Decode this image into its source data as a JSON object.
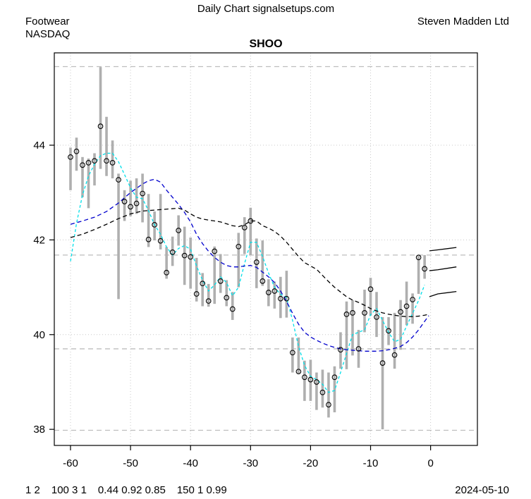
{
  "header": {
    "source_line": "Daily Chart signalsetups.com",
    "sector": "Footwear",
    "exchange": "NASDAQ",
    "company": "Steven Madden Ltd",
    "symbol": "SHOO"
  },
  "footer": {
    "stats_groups": [
      "1 2",
      "100 3 1",
      "0.44 0.92 0.85",
      "150 1 0.99"
    ],
    "date": "2024-05-10"
  },
  "chart_data": {
    "type": "ohlc-bar-with-close-markers",
    "title": "SHOO",
    "xlabel": "",
    "ylabel": "",
    "x_ticks": [
      -60,
      -50,
      -40,
      -30,
      -20,
      -10,
      0
    ],
    "y_ticks": [
      38,
      40,
      42,
      44
    ],
    "xlim": [
      -62.7,
      7.8
    ],
    "ylim": [
      37.66,
      45.95
    ],
    "h_gridlines": [
      44,
      42,
      40
    ],
    "grid": "dotted",
    "legend": "none",
    "reference_levels": [
      45.66,
      41.68,
      39.7,
      37.98
    ],
    "days": [
      -60,
      -59,
      -58,
      -57,
      -56,
      -55,
      -54,
      -53,
      -52,
      -51,
      -50,
      -49,
      -48,
      -47,
      -46,
      -45,
      -44,
      -43,
      -42,
      -41,
      -40,
      -39,
      -38,
      -37,
      -36,
      -35,
      -34,
      -33,
      -32,
      -31,
      -30,
      -29,
      -28,
      -27,
      -26,
      -25,
      -24,
      -23,
      -22,
      -21,
      -20,
      -19,
      -18,
      -17,
      -16,
      -15,
      -14,
      -13,
      -12,
      -11,
      -10,
      -9,
      -8,
      -7,
      -6,
      -5,
      -4,
      -3,
      -2,
      -1
    ],
    "high": [
      43.95,
      44.16,
      43.75,
      43.72,
      43.83,
      45.65,
      44.6,
      44.1,
      43.4,
      43.05,
      43.25,
      43.3,
      43.4,
      42.97,
      42.6,
      42.97,
      41.85,
      42.07,
      42.52,
      42.28,
      42.05,
      41.62,
      41.3,
      41.07,
      41.86,
      41.7,
      41.15,
      40.9,
      42.15,
      42.48,
      42.68,
      42.03,
      41.99,
      41.17,
      41.12,
      41.22,
      41.35,
      39.94,
      39.94,
      39.45,
      39.47,
      39.2,
      39.26,
      39.2,
      39.33,
      40.05,
      40.7,
      40.73,
      40.1,
      40.95,
      41.2,
      40.9,
      40.37,
      40.37,
      40.46,
      40.73,
      41.12,
      40.87,
      41.66,
      41.68
    ],
    "low": [
      43.05,
      43.46,
      42.9,
      42.67,
      43.15,
      43.5,
      43.35,
      43.3,
      40.75,
      42.4,
      42.5,
      42.55,
      42.37,
      41.85,
      41.99,
      41.8,
      41.18,
      41.45,
      41.88,
      41.05,
      40.97,
      40.7,
      40.6,
      40.59,
      40.65,
      40.88,
      40.6,
      40.31,
      41.0,
      41.7,
      41.68,
      40.98,
      41.03,
      40.6,
      40.55,
      40.35,
      40.36,
      39.2,
      39.18,
      38.6,
      38.6,
      38.41,
      38.46,
      38.25,
      38.36,
      39.28,
      39.27,
      39.56,
      39.3,
      40.05,
      40.4,
      39.95,
      38.0,
      39.78,
      39.28,
      39.68,
      40.2,
      40.23,
      40.86,
      41.18
    ],
    "close": [
      43.75,
      43.87,
      43.58,
      43.63,
      43.67,
      44.4,
      43.67,
      43.63,
      43.27,
      42.81,
      42.7,
      42.77,
      42.98,
      42.01,
      42.32,
      41.98,
      41.31,
      41.74,
      42.2,
      41.67,
      41.64,
      40.86,
      41.08,
      40.71,
      41.76,
      41.13,
      40.78,
      40.54,
      41.86,
      42.26,
      42.4,
      41.53,
      41.13,
      40.89,
      40.92,
      40.76,
      40.76,
      39.62,
      39.22,
      39.1,
      39.05,
      39.0,
      38.78,
      38.52,
      39.1,
      39.68,
      40.43,
      40.46,
      39.7,
      40.46,
      40.96,
      40.37,
      39.4,
      40.08,
      39.57,
      40.48,
      40.6,
      40.74,
      41.63,
      41.39
    ],
    "ma_fast": [
      [
        -60,
        41.55
      ],
      [
        -59,
        42.35
      ],
      [
        -58,
        42.95
      ],
      [
        -57,
        43.35
      ],
      [
        -56,
        43.6
      ],
      [
        -55,
        43.78
      ],
      [
        -54,
        43.83
      ],
      [
        -53,
        43.83
      ],
      [
        -52,
        43.65
      ],
      [
        -51,
        43.38
      ],
      [
        -50,
        43.1
      ],
      [
        -49,
        42.9
      ],
      [
        -48,
        42.87
      ],
      [
        -47,
        42.62
      ],
      [
        -46,
        42.32
      ],
      [
        -45,
        42.12
      ],
      [
        -44,
        41.85
      ],
      [
        -43,
        41.68
      ],
      [
        -42,
        41.82
      ],
      [
        -41,
        41.88
      ],
      [
        -40,
        41.8
      ],
      [
        -39,
        41.45
      ],
      [
        -38,
        41.15
      ],
      [
        -37,
        40.92
      ],
      [
        -36,
        41.05
      ],
      [
        -35,
        41.22
      ],
      [
        -34,
        41.1
      ],
      [
        -33,
        40.82
      ],
      [
        -32,
        41.0
      ],
      [
        -31,
        41.5
      ],
      [
        -30,
        41.95
      ],
      [
        -29,
        41.95
      ],
      [
        -28,
        41.65
      ],
      [
        -27,
        41.3
      ],
      [
        -26,
        41.0
      ],
      [
        -25,
        40.85
      ],
      [
        -24,
        40.78
      ],
      [
        -23,
        40.3
      ],
      [
        -22,
        39.75
      ],
      [
        -21,
        39.35
      ],
      [
        -20,
        39.12
      ],
      [
        -19,
        39.05
      ],
      [
        -18,
        38.95
      ],
      [
        -17,
        38.78
      ],
      [
        -16,
        38.82
      ],
      [
        -15,
        39.2
      ],
      [
        -14,
        39.6
      ],
      [
        -13,
        40.0
      ],
      [
        -12,
        40.05
      ],
      [
        -11,
        40.1
      ],
      [
        -10,
        40.42
      ],
      [
        -9,
        40.55
      ],
      [
        -8,
        40.3
      ],
      [
        -7,
        40.05
      ],
      [
        -6,
        39.85
      ],
      [
        -5,
        39.9
      ],
      [
        -4,
        40.18
      ],
      [
        -3,
        40.45
      ],
      [
        -2,
        40.72
      ],
      [
        -1,
        41.05
      ]
    ],
    "ma_mid": [
      [
        -60,
        42.33
      ],
      [
        -58,
        42.4
      ],
      [
        -56,
        42.48
      ],
      [
        -54,
        42.6
      ],
      [
        -52,
        42.78
      ],
      [
        -50,
        43.0
      ],
      [
        -48,
        43.18
      ],
      [
        -47,
        43.25
      ],
      [
        -46,
        43.28
      ],
      [
        -45,
        43.22
      ],
      [
        -44,
        43.05
      ],
      [
        -43,
        42.9
      ],
      [
        -42,
        42.75
      ],
      [
        -41,
        42.58
      ],
      [
        -40,
        42.38
      ],
      [
        -39,
        42.12
      ],
      [
        -38,
        41.92
      ],
      [
        -37,
        41.76
      ],
      [
        -36,
        41.63
      ],
      [
        -35,
        41.53
      ],
      [
        -34,
        41.46
      ],
      [
        -33,
        41.43
      ],
      [
        -32,
        41.43
      ],
      [
        -31,
        41.45
      ],
      [
        -30,
        41.46
      ],
      [
        -29,
        41.42
      ],
      [
        -28,
        41.32
      ],
      [
        -27,
        41.22
      ],
      [
        -26,
        41.1
      ],
      [
        -25,
        40.92
      ],
      [
        -24,
        40.7
      ],
      [
        -23,
        40.45
      ],
      [
        -22,
        40.22
      ],
      [
        -21,
        40.05
      ],
      [
        -20,
        39.95
      ],
      [
        -19,
        39.88
      ],
      [
        -18,
        39.82
      ],
      [
        -17,
        39.77
      ],
      [
        -16,
        39.73
      ],
      [
        -15,
        39.7
      ],
      [
        -14,
        39.68
      ],
      [
        -13,
        39.67
      ],
      [
        -12,
        39.66
      ],
      [
        -11,
        39.65
      ],
      [
        -10,
        39.65
      ],
      [
        -9,
        39.65
      ],
      [
        -8,
        39.66
      ],
      [
        -7,
        39.68
      ],
      [
        -6,
        39.71
      ],
      [
        -5,
        39.75
      ],
      [
        -4,
        39.83
      ],
      [
        -3,
        39.95
      ],
      [
        -2,
        40.1
      ],
      [
        -1,
        40.28
      ],
      [
        -0.3,
        40.4
      ]
    ],
    "ma_slow": [
      [
        -60,
        42.05
      ],
      [
        -58,
        42.12
      ],
      [
        -56,
        42.22
      ],
      [
        -54,
        42.33
      ],
      [
        -52,
        42.45
      ],
      [
        -50,
        42.55
      ],
      [
        -48,
        42.61
      ],
      [
        -46,
        42.63
      ],
      [
        -44,
        42.65
      ],
      [
        -42,
        42.67
      ],
      [
        -41,
        42.63
      ],
      [
        -40,
        42.55
      ],
      [
        -39,
        42.48
      ],
      [
        -38,
        42.44
      ],
      [
        -37,
        42.42
      ],
      [
        -36,
        42.4
      ],
      [
        -35,
        42.38
      ],
      [
        -34,
        42.34
      ],
      [
        -33,
        42.3
      ],
      [
        -32,
        42.28
      ],
      [
        -31,
        42.32
      ],
      [
        -30,
        42.4
      ],
      [
        -29,
        42.4
      ],
      [
        -28,
        42.3
      ],
      [
        -27,
        42.25
      ],
      [
        -26,
        42.18
      ],
      [
        -25,
        42.08
      ],
      [
        -24,
        41.95
      ],
      [
        -23,
        41.8
      ],
      [
        -22,
        41.65
      ],
      [
        -21,
        41.52
      ],
      [
        -20,
        41.45
      ],
      [
        -19,
        41.38
      ],
      [
        -18,
        41.25
      ],
      [
        -17,
        41.12
      ],
      [
        -16,
        41.0
      ],
      [
        -15,
        40.9
      ],
      [
        -14,
        40.8
      ],
      [
        -13,
        40.73
      ],
      [
        -12,
        40.68
      ],
      [
        -11,
        40.62
      ],
      [
        -10,
        40.55
      ],
      [
        -9,
        40.5
      ],
      [
        -8,
        40.46
      ],
      [
        -7,
        40.43
      ],
      [
        -6,
        40.41
      ],
      [
        -5,
        40.39
      ],
      [
        -4,
        40.38
      ],
      [
        -3,
        40.38
      ],
      [
        -2,
        40.39
      ],
      [
        -1,
        40.41
      ],
      [
        -0.3,
        40.43
      ]
    ],
    "projections": [
      [
        [
          -0.2,
          41.77
        ],
        [
          1.2,
          41.79
        ],
        [
          4.3,
          41.84
        ]
      ],
      [
        [
          -0.2,
          41.35
        ],
        [
          1.2,
          41.37
        ],
        [
          4.3,
          41.43
        ]
      ],
      [
        [
          -0.2,
          40.8
        ],
        [
          1.2,
          40.86
        ],
        [
          4.3,
          40.91
        ]
      ]
    ],
    "colors": {
      "bar": "#afafaf",
      "close": "#000000",
      "fast": "#00e0ea",
      "mid": "#0000cd",
      "slow": "#000000",
      "grid": "#c9c9c9",
      "ref": "#bebebe"
    }
  }
}
